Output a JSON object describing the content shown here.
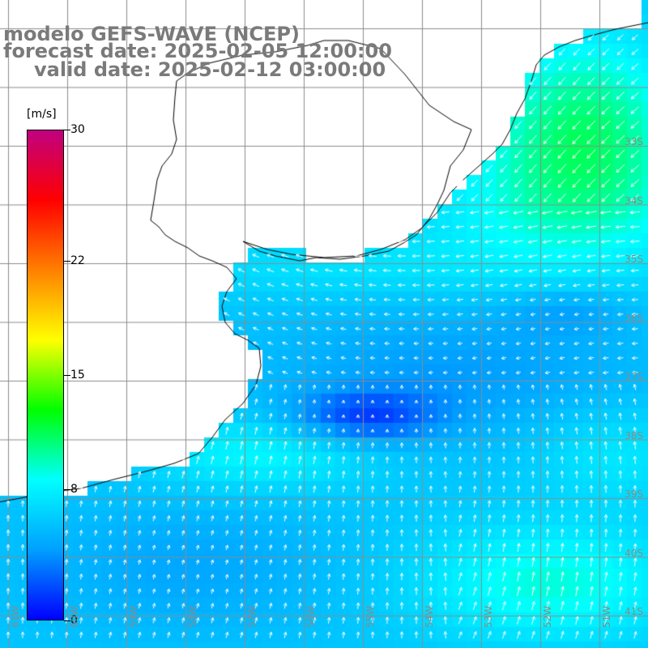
{
  "title": {
    "line1": "modelo GEFS-WAVE (NCEP)",
    "line2": "forecast date: 2025-02-05 12:00:00",
    "line3": "valid date: 2025-02-12 03:00:00"
  },
  "colorbar": {
    "unit": "[m/s]",
    "min": 0,
    "max": 30,
    "ticks": [
      "30",
      "22",
      "15",
      "8",
      "0"
    ],
    "tick_values": [
      30,
      22,
      15,
      8,
      0
    ],
    "colors": [
      "#0000ff",
      "#00a0ff",
      "#00ffff",
      "#00ff00",
      "#ffff00",
      "#ff8000",
      "#ff0000",
      "#c00080"
    ]
  },
  "map": {
    "variable": "wind speed",
    "lat_labels": [
      "33S",
      "34S",
      "35S",
      "36S",
      "37S",
      "38S",
      "39S",
      "40S",
      "41S"
    ],
    "lon_labels": [
      "61W",
      "60W",
      "59W",
      "58W",
      "57W",
      "56W",
      "55W",
      "54W",
      "53W",
      "52W",
      "51W"
    ],
    "land_color": "#ffffff",
    "grid_color": "#8c8c8c",
    "coast_color": "#000000"
  }
}
